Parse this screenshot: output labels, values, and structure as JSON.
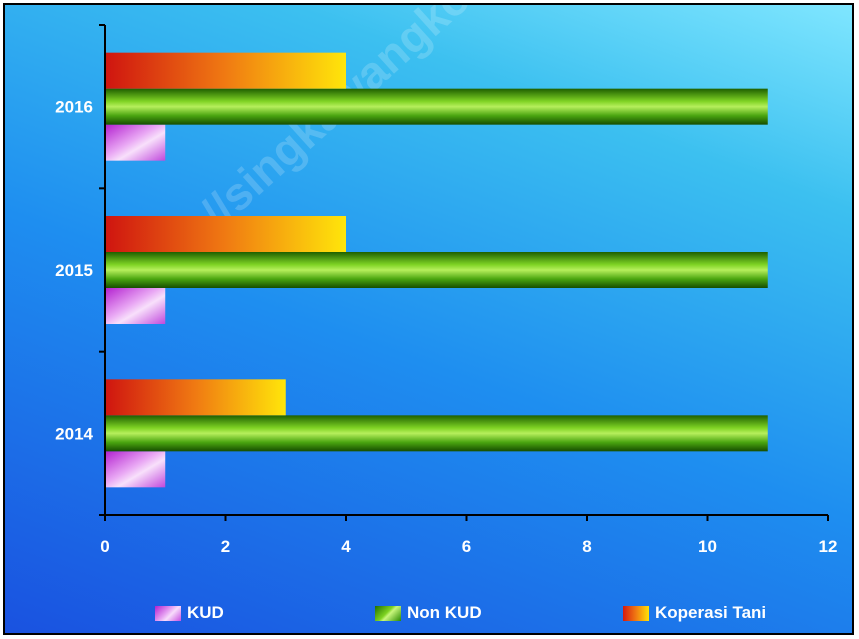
{
  "chart_data": {
    "type": "bar",
    "orientation": "horizontal",
    "categories": [
      "2014",
      "2015",
      "2016"
    ],
    "series": [
      {
        "name": "KUD",
        "values": [
          1,
          1,
          1
        ],
        "color": "#d86ae8"
      },
      {
        "name": "Non KUD",
        "values": [
          11,
          11,
          11
        ],
        "color": "#5cbf14"
      },
      {
        "name": "Koperasi Tani",
        "values": [
          3,
          4,
          4
        ],
        "color": "#f08a10"
      }
    ],
    "xticks": [
      "0",
      "2",
      "4",
      "6",
      "8",
      "10",
      "12"
    ],
    "xlim": [
      0,
      12
    ],
    "legend_position": "bottom",
    "grid": false
  },
  "watermark": "https://singkawangkota.bps.go.id"
}
